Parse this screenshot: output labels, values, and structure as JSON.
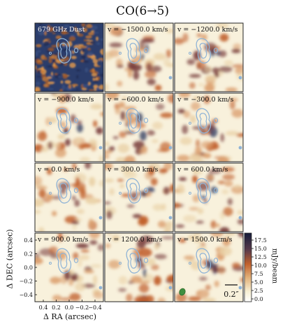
{
  "figure": {
    "title": "CO(6→5)",
    "dust_panel_label": "679 GHz Dust",
    "panels": [
      {
        "label": "v = −1500.0 km/s"
      },
      {
        "label": "v = −1200.0 km/s"
      },
      {
        "label": "v = −900.0 km/s"
      },
      {
        "label": "v = −600.0 km/s"
      },
      {
        "label": "v = −300.0 km/s"
      },
      {
        "label": "v = 0.0 km/s"
      },
      {
        "label": "v = 300.0 km/s"
      },
      {
        "label": "v = 600.0 km/s"
      },
      {
        "label": "v = 900.0 km/s"
      },
      {
        "label": "v = 1200.0 km/s"
      },
      {
        "label": "v = 1500.0 km/s"
      }
    ],
    "x_axis_label": "Δ RA (arcsec)",
    "y_axis_label": "Δ DEC (arcsec)",
    "x_ticks": [
      "0.4",
      "0.2",
      "0.0",
      "−0.2",
      "−0.4"
    ],
    "y_ticks": [
      "0.4",
      "0.2",
      "0.0",
      "−0.2",
      "−0.4"
    ],
    "colorbar_label": "mJy/beam",
    "colorbar_ticks": [
      "17.5",
      "15.0",
      "12.5",
      "10.0",
      "7.5",
      "5.0",
      "2.5",
      "0.0"
    ],
    "scale_bar_label": "0.2″",
    "colors": {
      "contour": "#8fb3d6",
      "beam": "#3f8f3f",
      "dust_dark": "#2b3d6b",
      "dust_bright": "#c97a34",
      "map_low": "#f8f1dc",
      "map_mid": "#c1602c",
      "map_high": "#1b2a55"
    }
  }
}
